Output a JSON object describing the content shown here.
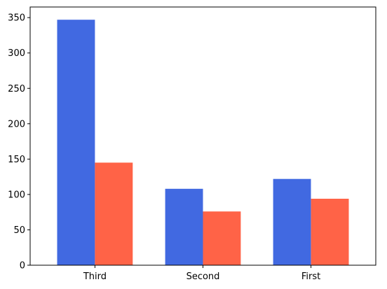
{
  "chart_data": {
    "type": "bar",
    "categories": [
      "Third",
      "Second",
      "First"
    ],
    "series": [
      {
        "values": [
          347,
          108,
          122
        ],
        "color": "#4169E1"
      },
      {
        "values": [
          145,
          76,
          94
        ],
        "color": "#FF6347"
      }
    ],
    "ylim": [
      0,
      365
    ],
    "yticks": [
      0,
      50,
      100,
      150,
      200,
      250,
      300,
      350
    ],
    "grid": false
  }
}
